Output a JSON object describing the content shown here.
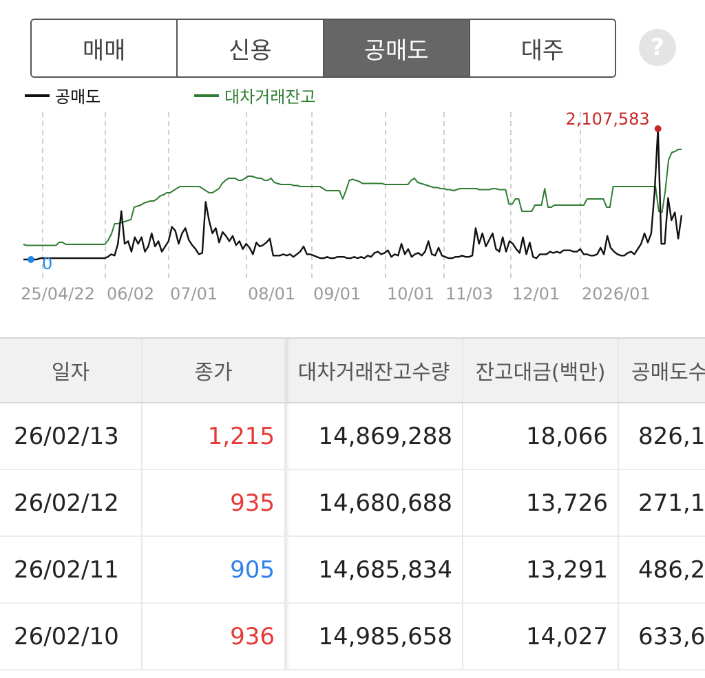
{
  "tabs": [
    {
      "label": "매매",
      "active": false
    },
    {
      "label": "신용",
      "active": false
    },
    {
      "label": "공매도",
      "active": true
    },
    {
      "label": "대주",
      "active": false
    }
  ],
  "help": {
    "icon": "question-icon",
    "label": "?"
  },
  "legend": {
    "short": "공매도",
    "loan": "대차거래잔고"
  },
  "chart_data": {
    "type": "line",
    "x_ticks": [
      "25/04/22",
      "06/02",
      "07/01",
      "08/01",
      "09/01",
      "10/01",
      "11/03",
      "12/01",
      "2026/01"
    ],
    "annotations": {
      "max_label": "2,107,583",
      "min_label": "0"
    },
    "colors": {
      "short": "#111111",
      "loan": "#2e7d32",
      "max": "#c62828",
      "min": "#1e88e5"
    },
    "series": [
      {
        "name": "공매도",
        "values": [
          0.0,
          0.0,
          0.0,
          0.0,
          0.0,
          0.01,
          0.01,
          0.01,
          0.01,
          0.01,
          0.01,
          0.01,
          0.01,
          0.01,
          0.01,
          0.01,
          0.01,
          0.01,
          0.01,
          0.01,
          0.01,
          0.01,
          0.01,
          0.01,
          0.01,
          0.02,
          0.04,
          0.03,
          0.12,
          0.37,
          0.12,
          0.14,
          0.06,
          0.17,
          0.12,
          0.17,
          0.06,
          0.1,
          0.2,
          0.1,
          0.14,
          0.06,
          0.1,
          0.14,
          0.25,
          0.22,
          0.12,
          0.2,
          0.24,
          0.15,
          0.11,
          0.08,
          0.04,
          0.05,
          0.44,
          0.3,
          0.2,
          0.24,
          0.13,
          0.21,
          0.18,
          0.14,
          0.18,
          0.11,
          0.14,
          0.08,
          0.12,
          0.09,
          0.04,
          0.13,
          0.1,
          0.11,
          0.13,
          0.16,
          0.03,
          0.03,
          0.03,
          0.04,
          0.03,
          0.04,
          0.02,
          0.04,
          0.06,
          0.1,
          0.04,
          0.04,
          0.03,
          0.02,
          0.01,
          0.01,
          0.02,
          0.01,
          0.01,
          0.02,
          0.02,
          0.02,
          0.01,
          0.01,
          0.02,
          0.01,
          0.02,
          0.01,
          0.03,
          0.02,
          0.05,
          0.06,
          0.04,
          0.05,
          0.07,
          0.02,
          0.04,
          0.03,
          0.12,
          0.04,
          0.08,
          0.02,
          0.04,
          0.05,
          0.03,
          0.06,
          0.14,
          0.04,
          0.03,
          0.09,
          0.03,
          0.02,
          0.01,
          0.01,
          0.02,
          0.02,
          0.03,
          0.02,
          0.02,
          0.03,
          0.24,
          0.12,
          0.2,
          0.1,
          0.15,
          0.2,
          0.08,
          0.06,
          0.17,
          0.06,
          0.14,
          0.12,
          0.08,
          0.05,
          0.17,
          0.04,
          0.13,
          0.02,
          0.01,
          0.04,
          0.04,
          0.04,
          0.06,
          0.05,
          0.06,
          0.05,
          0.07,
          0.07,
          0.07,
          0.06,
          0.06,
          0.08,
          0.04,
          0.04,
          0.03,
          0.03,
          0.04,
          0.09,
          0.04,
          0.18,
          0.09,
          0.06,
          0.04,
          0.03,
          0.03,
          0.05,
          0.06,
          0.04,
          0.08,
          0.12,
          0.2,
          0.13,
          0.2,
          0.52,
          1.0,
          0.12,
          0.12,
          0.47,
          0.3,
          0.36,
          0.16,
          0.34
        ]
      },
      {
        "name": "대차거래잔고",
        "values": [
          0.08,
          0.07,
          0.07,
          0.07,
          0.07,
          0.07,
          0.07,
          0.07,
          0.07,
          0.07,
          0.07,
          0.1,
          0.1,
          0.08,
          0.08,
          0.08,
          0.08,
          0.08,
          0.08,
          0.08,
          0.08,
          0.08,
          0.08,
          0.08,
          0.08,
          0.08,
          0.12,
          0.18,
          0.28,
          0.28,
          0.29,
          0.3,
          0.31,
          0.32,
          0.44,
          0.45,
          0.46,
          0.48,
          0.49,
          0.5,
          0.5,
          0.52,
          0.55,
          0.56,
          0.58,
          0.58,
          0.6,
          0.62,
          0.64,
          0.64,
          0.64,
          0.64,
          0.64,
          0.64,
          0.64,
          0.62,
          0.6,
          0.58,
          0.58,
          0.6,
          0.62,
          0.67,
          0.7,
          0.72,
          0.72,
          0.72,
          0.7,
          0.7,
          0.72,
          0.74,
          0.74,
          0.73,
          0.72,
          0.72,
          0.7,
          0.7,
          0.72,
          0.68,
          0.67,
          0.66,
          0.66,
          0.66,
          0.66,
          0.65,
          0.65,
          0.64,
          0.64,
          0.64,
          0.64,
          0.64,
          0.64,
          0.64,
          0.62,
          0.6,
          0.6,
          0.6,
          0.6,
          0.6,
          0.52,
          0.6,
          0.7,
          0.71,
          0.7,
          0.69,
          0.67,
          0.67,
          0.67,
          0.67,
          0.67,
          0.67,
          0.67,
          0.66,
          0.66,
          0.66,
          0.66,
          0.66,
          0.66,
          0.66,
          0.66,
          0.7,
          0.72,
          0.68,
          0.67,
          0.66,
          0.65,
          0.64,
          0.63,
          0.63,
          0.62,
          0.62,
          0.61,
          0.61,
          0.6,
          0.61,
          0.62,
          0.62,
          0.62,
          0.62,
          0.62,
          0.62,
          0.61,
          0.61,
          0.61,
          0.61,
          0.62,
          0.62,
          0.61,
          0.61,
          0.61,
          0.47,
          0.47,
          0.52,
          0.52,
          0.4,
          0.4,
          0.4,
          0.4,
          0.46,
          0.46,
          0.46,
          0.62,
          0.44,
          0.44,
          0.46,
          0.46,
          0.46,
          0.46,
          0.46,
          0.46,
          0.46,
          0.46,
          0.46,
          0.46,
          0.52,
          0.52,
          0.52,
          0.52,
          0.52,
          0.52,
          0.44,
          0.44,
          0.64,
          0.64,
          0.64,
          0.64,
          0.64,
          0.64,
          0.64,
          0.64,
          0.64,
          0.64,
          0.64,
          0.64,
          0.64,
          0.64,
          0.4,
          0.39,
          0.6,
          0.9,
          0.97,
          0.98,
          1.0,
          1.0
        ]
      }
    ]
  },
  "table": {
    "headers": [
      "일자",
      "종가",
      "대차거래잔고수량",
      "잔고대금(백만)",
      "공매도수"
    ],
    "rows": [
      {
        "date": "26/02/13",
        "close": "1,215",
        "close_dir": "up",
        "qty": "14,869,288",
        "amt": "18,066",
        "short": "826,1"
      },
      {
        "date": "26/02/12",
        "close": "935",
        "close_dir": "up",
        "qty": "14,680,688",
        "amt": "13,726",
        "short": "271,1"
      },
      {
        "date": "26/02/11",
        "close": "905",
        "close_dir": "down",
        "qty": "14,685,834",
        "amt": "13,291",
        "short": "486,2"
      },
      {
        "date": "26/02/10",
        "close": "936",
        "close_dir": "up",
        "qty": "14,985,658",
        "amt": "14,027",
        "short": "633,6"
      }
    ]
  }
}
